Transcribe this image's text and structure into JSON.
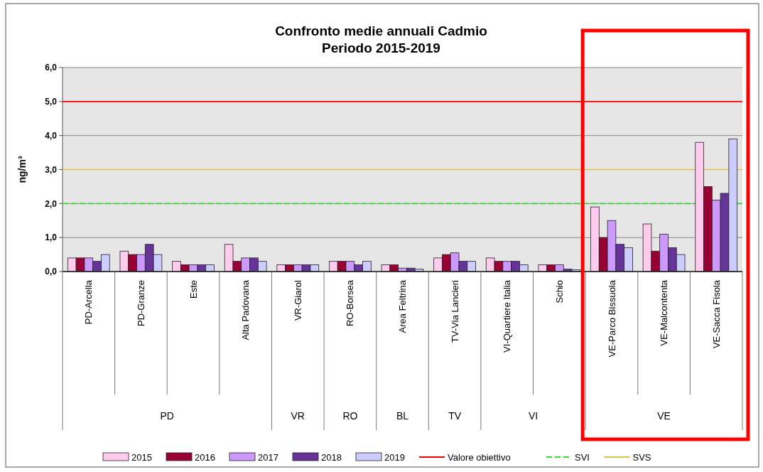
{
  "chart_data": {
    "type": "bar",
    "title": "Confronto medie annuali Cadmio\nPeriodo 2015-2019",
    "ylabel": "ng/m³",
    "categories": [
      "PD-Arcella",
      "PD-Granze",
      "Este",
      "Alta Padovana",
      "VR-Giarol",
      "RO-Borsea",
      "Area Feltrina",
      "TV-Via Lancieri",
      "VI-Quartiere Italia",
      "Schio",
      "VE-Parco Bissuola",
      "VE-Malcontenta",
      "VE-Sacca Fisola"
    ],
    "series": [
      {
        "name": "2015",
        "color": "#ffccee",
        "values": [
          0.4,
          0.6,
          0.3,
          0.8,
          0.2,
          0.3,
          0.2,
          0.4,
          0.4,
          0.2,
          1.9,
          1.4,
          3.8
        ]
      },
      {
        "name": "2016",
        "color": "#990033",
        "values": [
          0.4,
          0.5,
          0.2,
          0.3,
          0.2,
          0.3,
          0.2,
          0.5,
          0.3,
          0.2,
          1.0,
          0.6,
          2.5
        ]
      },
      {
        "name": "2017",
        "color": "#cc99ff",
        "values": [
          0.4,
          0.5,
          0.2,
          0.4,
          0.2,
          0.3,
          0.1,
          0.55,
          0.3,
          0.2,
          1.5,
          1.1,
          2.1
        ]
      },
      {
        "name": "2018",
        "color": "#663399",
        "values": [
          0.3,
          0.8,
          0.2,
          0.4,
          0.2,
          0.2,
          0.1,
          0.3,
          0.3,
          0.07,
          0.8,
          0.7,
          2.3
        ]
      },
      {
        "name": "2019",
        "color": "#ccccff",
        "values": [
          0.5,
          0.5,
          0.2,
          0.3,
          0.2,
          0.3,
          0.07,
          0.3,
          0.2,
          0.05,
          0.7,
          0.5,
          3.9
        ]
      }
    ],
    "ylim": [
      0,
      6
    ],
    "yticks": [
      {
        "value": 0,
        "label": "0,0"
      },
      {
        "value": 1,
        "label": "1,0"
      },
      {
        "value": 2,
        "label": "2,0"
      },
      {
        "value": 3,
        "label": "3,0"
      },
      {
        "value": 4,
        "label": "4,0"
      },
      {
        "value": 5,
        "label": "5,0"
      },
      {
        "value": 6,
        "label": "6,0"
      }
    ],
    "grid": "y",
    "legend": "bottom",
    "ref_lines": [
      {
        "axis": "y",
        "value": 5,
        "label": "Valore obiettivo",
        "color": "#ff0000",
        "line_style": "solid"
      },
      {
        "axis": "y",
        "value": 2,
        "label": "SVI",
        "color": "#33dd33",
        "line_style": "dashed"
      },
      {
        "axis": "y",
        "value": 3,
        "label": "SVS",
        "color": "#e0c040",
        "line_style": "solid"
      }
    ],
    "annotations": [
      "PD",
      "VR",
      "RO",
      "BL",
      "TV",
      "VI",
      "VE"
    ]
  }
}
